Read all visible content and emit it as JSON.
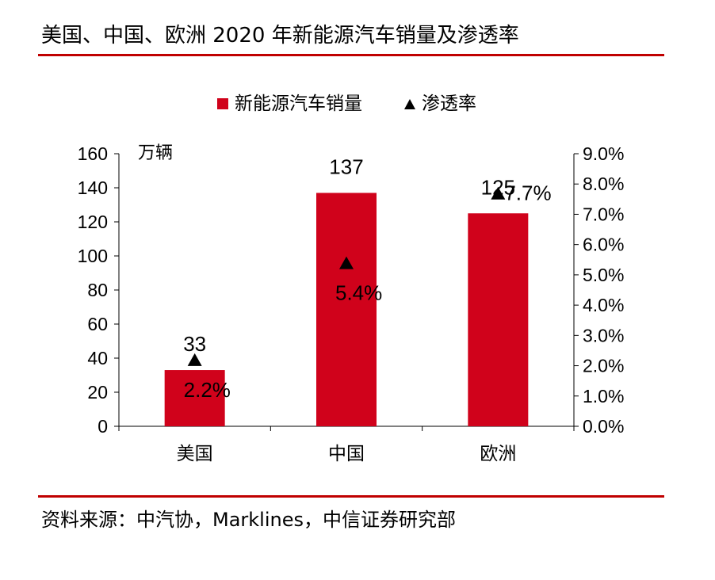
{
  "figure": {
    "title": "美国、中国、欧洲 2020 年新能源汽车销量及渗透率",
    "source": "资料来源：中汽协，Marklines，中信证券研究部"
  },
  "colors": {
    "bar": "#d0021b",
    "rule": "#c00000",
    "marker": "#000000"
  },
  "chart_data": {
    "type": "bar",
    "categories": [
      "美国",
      "中国",
      "欧洲"
    ],
    "series": [
      {
        "name": "新能源汽车销量",
        "type": "bar",
        "axis": "left",
        "values": [
          33,
          137,
          125
        ]
      },
      {
        "name": "渗透率",
        "type": "scatter",
        "marker": "triangle",
        "axis": "right",
        "values": [
          2.2,
          5.4,
          7.7
        ]
      }
    ],
    "bar_labels": [
      "33",
      "137",
      "125"
    ],
    "point_labels": [
      "2.2%",
      "5.4%",
      "7.7%"
    ],
    "y_left": {
      "unit_label": "万辆",
      "ylim": [
        0,
        160
      ],
      "ticks": [
        "0",
        "20",
        "40",
        "60",
        "80",
        "100",
        "120",
        "140",
        "160"
      ]
    },
    "y_right": {
      "ylim": [
        0,
        9
      ],
      "ticks": [
        "0.0%",
        "1.0%",
        "2.0%",
        "3.0%",
        "4.0%",
        "5.0%",
        "6.0%",
        "7.0%",
        "8.0%",
        "9.0%"
      ]
    },
    "legend": {
      "placement": "top-center"
    },
    "grid": false
  }
}
